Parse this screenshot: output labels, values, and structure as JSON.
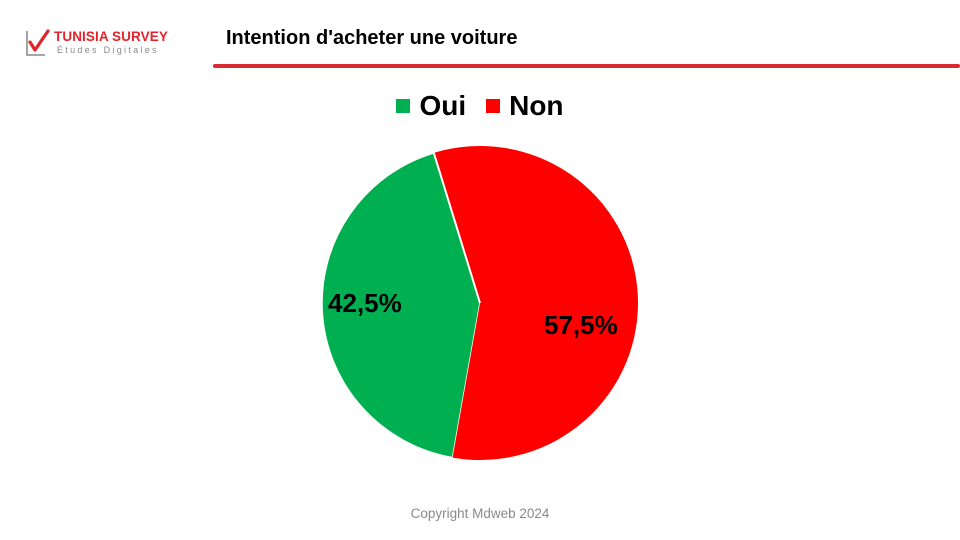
{
  "brand": {
    "name": "TUNISIA SURVEY",
    "tagline": "Études Digitales",
    "color": "#e3222b"
  },
  "header": {
    "title": "Intention d'acheter une voiture",
    "rule_color": "#d92a32"
  },
  "footer": {
    "copyright": "Copyright Mdweb  2024"
  },
  "chart_data": {
    "type": "pie",
    "title": "",
    "legend_position": "top-center",
    "slices": [
      {
        "name": "Oui",
        "value": 42.5,
        "label": "42,5%",
        "color": "#00b050"
      },
      {
        "name": "Non",
        "value": 57.5,
        "label": "57,5%",
        "color": "#ff0000"
      }
    ]
  }
}
